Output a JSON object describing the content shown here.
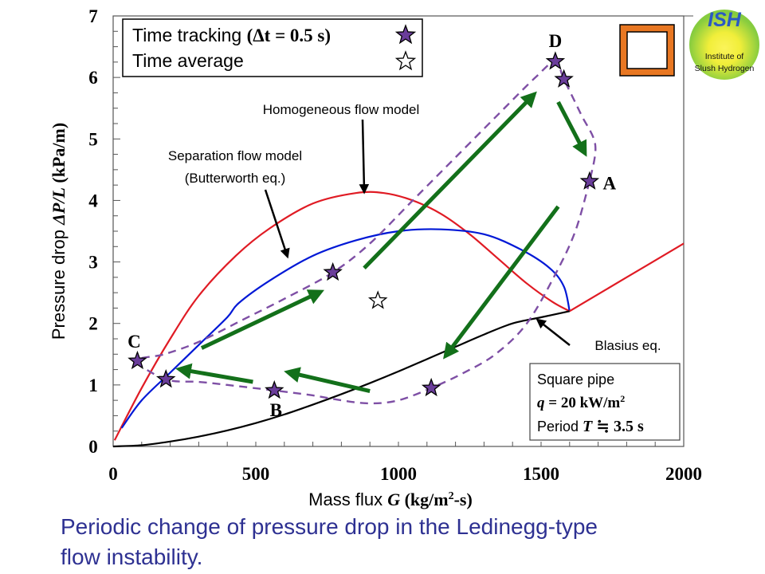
{
  "chart_data": {
    "type": "line",
    "title": "",
    "xlabel": "Mass flux G (kg/m²-s)",
    "xlabel_parts": {
      "prefix": "Mass flux ",
      "symbol": "G",
      "unit": " (kg/m",
      "sup": "2",
      "unit_end": "-s)"
    },
    "ylabel": "Pressure drop ΔP/L (kPa/m)",
    "ylabel_parts": {
      "prefix": "Pressure drop ",
      "symbol": "ΔP/L",
      "unit": " (kPa/m)"
    },
    "xlim": [
      0,
      2000
    ],
    "ylim": [
      0,
      7
    ],
    "x_ticks": [
      0,
      500,
      1000,
      1500,
      2000
    ],
    "y_ticks": [
      0,
      1,
      2,
      3,
      4,
      5,
      6,
      7
    ],
    "x_minor_step": 100,
    "y_minor_step": 0.25,
    "grid": false,
    "series": [
      {
        "name": "Homogeneous flow model",
        "color": "#e01b24",
        "style": "solid",
        "points": [
          [
            5,
            0.1
          ],
          [
            100,
            0.95
          ],
          [
            200,
            1.75
          ],
          [
            300,
            2.45
          ],
          [
            430,
            3.1
          ],
          [
            550,
            3.55
          ],
          [
            700,
            3.95
          ],
          [
            850,
            4.12
          ],
          [
            950,
            4.12
          ],
          [
            1050,
            4.0
          ],
          [
            1150,
            3.78
          ],
          [
            1250,
            3.45
          ],
          [
            1350,
            3.05
          ],
          [
            1450,
            2.65
          ],
          [
            1540,
            2.35
          ],
          [
            1600,
            2.2
          ]
        ]
      },
      {
        "name": "Separation flow model (Butterworth eq.)",
        "color": "#0018d6",
        "style": "solid",
        "points": [
          [
            30,
            0.3
          ],
          [
            100,
            0.75
          ],
          [
            200,
            1.2
          ],
          [
            300,
            1.65
          ],
          [
            400,
            2.1
          ],
          [
            440,
            2.33
          ],
          [
            550,
            2.7
          ],
          [
            700,
            3.1
          ],
          [
            850,
            3.35
          ],
          [
            1000,
            3.5
          ],
          [
            1150,
            3.53
          ],
          [
            1300,
            3.45
          ],
          [
            1430,
            3.2
          ],
          [
            1530,
            2.9
          ],
          [
            1580,
            2.6
          ],
          [
            1600,
            2.2
          ]
        ]
      },
      {
        "name": "Blasius eq.",
        "color": "#000000",
        "style": "solid",
        "points": [
          [
            0,
            0
          ],
          [
            100,
            0.02
          ],
          [
            200,
            0.08
          ],
          [
            300,
            0.16
          ],
          [
            400,
            0.26
          ],
          [
            500,
            0.38
          ],
          [
            600,
            0.52
          ],
          [
            700,
            0.68
          ],
          [
            800,
            0.85
          ],
          [
            900,
            1.03
          ],
          [
            1000,
            1.22
          ],
          [
            1100,
            1.42
          ],
          [
            1200,
            1.62
          ],
          [
            1300,
            1.82
          ],
          [
            1400,
            2.0
          ],
          [
            1500,
            2.1
          ],
          [
            1600,
            2.2
          ]
        ]
      },
      {
        "name": "Single-phase continuation",
        "color": "#e01b24",
        "style": "solid",
        "points": [
          [
            1600,
            2.2
          ],
          [
            1800,
            2.75
          ],
          [
            2000,
            3.3
          ]
        ]
      },
      {
        "name": "Time tracking trajectory",
        "color": "#7e4fa5",
        "style": "dashed",
        "points": [
          [
            1670,
            4.31
          ],
          [
            1620,
            3.5
          ],
          [
            1550,
            2.8
          ],
          [
            1450,
            2.0
          ],
          [
            1340,
            1.5
          ],
          [
            1230,
            1.2
          ],
          [
            1115,
            0.95
          ],
          [
            1000,
            0.75
          ],
          [
            900,
            0.7
          ],
          [
            800,
            0.75
          ],
          [
            700,
            0.83
          ],
          [
            565,
            0.91
          ],
          [
            400,
            1.0
          ],
          [
            300,
            1.05
          ],
          [
            185,
            1.09
          ],
          [
            85,
            1.39
          ],
          [
            180,
            1.5
          ],
          [
            300,
            1.7
          ],
          [
            450,
            2.05
          ],
          [
            600,
            2.4
          ],
          [
            770,
            2.83
          ],
          [
            900,
            3.3
          ],
          [
            1050,
            4.0
          ],
          [
            1200,
            4.7
          ],
          [
            1350,
            5.4
          ],
          [
            1480,
            6.0
          ],
          [
            1550,
            6.26
          ],
          [
            1580,
            5.97
          ],
          [
            1640,
            5.4
          ],
          [
            1690,
            4.9
          ],
          [
            1670,
            4.31
          ]
        ]
      }
    ],
    "time_tracking_points": [
      {
        "label": "D",
        "G": 1550,
        "dp": 6.26
      },
      {
        "label": "",
        "G": 1580,
        "dp": 5.97
      },
      {
        "label": "A",
        "G": 1670,
        "dp": 4.31
      },
      {
        "label": "",
        "G": 1115,
        "dp": 0.95
      },
      {
        "label": "B",
        "G": 565,
        "dp": 0.91
      },
      {
        "label": "",
        "G": 185,
        "dp": 1.09
      },
      {
        "label": "C",
        "G": 85,
        "dp": 1.39
      },
      {
        "label": "",
        "G": 770,
        "dp": 2.83
      }
    ],
    "time_average_point": {
      "G": 928,
      "dp": 2.37
    },
    "direction_arrows": [
      {
        "from": [
          880,
          2.9
        ],
        "to": [
          1470,
          5.7
        ]
      },
      {
        "from": [
          1560,
          5.6
        ],
        "to": [
          1650,
          4.8
        ]
      },
      {
        "from": [
          1560,
          3.9
        ],
        "to": [
          1170,
          1.5
        ]
      },
      {
        "from": [
          900,
          0.9
        ],
        "to": [
          620,
          1.2
        ]
      },
      {
        "from": [
          490,
          1.05
        ],
        "to": [
          240,
          1.25
        ]
      },
      {
        "from": [
          310,
          1.6
        ],
        "to": [
          720,
          2.5
        ]
      }
    ],
    "arrow_color": "#13701a",
    "annotations": [
      {
        "text": "Homogeneous flow model",
        "points_to": [
          880,
          4.15
        ]
      },
      {
        "text_lines": [
          "Separation flow model",
          "(Butterworth eq.)"
        ],
        "points_to": [
          610,
          3.1
        ]
      },
      {
        "text": "Blasius eq.",
        "points_to": [
          1490,
          2.05
        ]
      }
    ],
    "point_labels": [
      "A",
      "B",
      "C",
      "D"
    ],
    "legend": {
      "position": "top-left",
      "entries": [
        {
          "label": "Time tracking",
          "math": "(Δt = 0.5 s)",
          "marker": "filled-star",
          "color": "#6a3d9a"
        },
        {
          "label": "Time average",
          "marker": "hollow-star",
          "color": "#ffffff"
        }
      ]
    },
    "condition_box": {
      "position": "bottom-right",
      "lines": [
        "Square pipe",
        "q = 20 kW/m²",
        "Period T ≒ 3.5 s"
      ],
      "line2_parts": {
        "sym": "q",
        "rest": " = 20 kW/m",
        "sup": "2"
      },
      "line3_parts": {
        "prefix": "Period ",
        "sym": "T",
        "rest": " ≒ 3.5 s"
      }
    }
  },
  "logo": {
    "title": "ISH",
    "subtitle_line1": "Institute of",
    "subtitle_line2": "Slush Hydrogen",
    "colors": {
      "outer": "#8fd14f",
      "inner": "#f6ee3a",
      "title": "#2b59c3"
    }
  },
  "pipe_icon": {
    "name": "square-pipe-cross-section",
    "color": "#e87722"
  },
  "caption": {
    "line1": "Periodic change of pressure drop in the Ledinegg-type",
    "line2": "flow instability."
  }
}
